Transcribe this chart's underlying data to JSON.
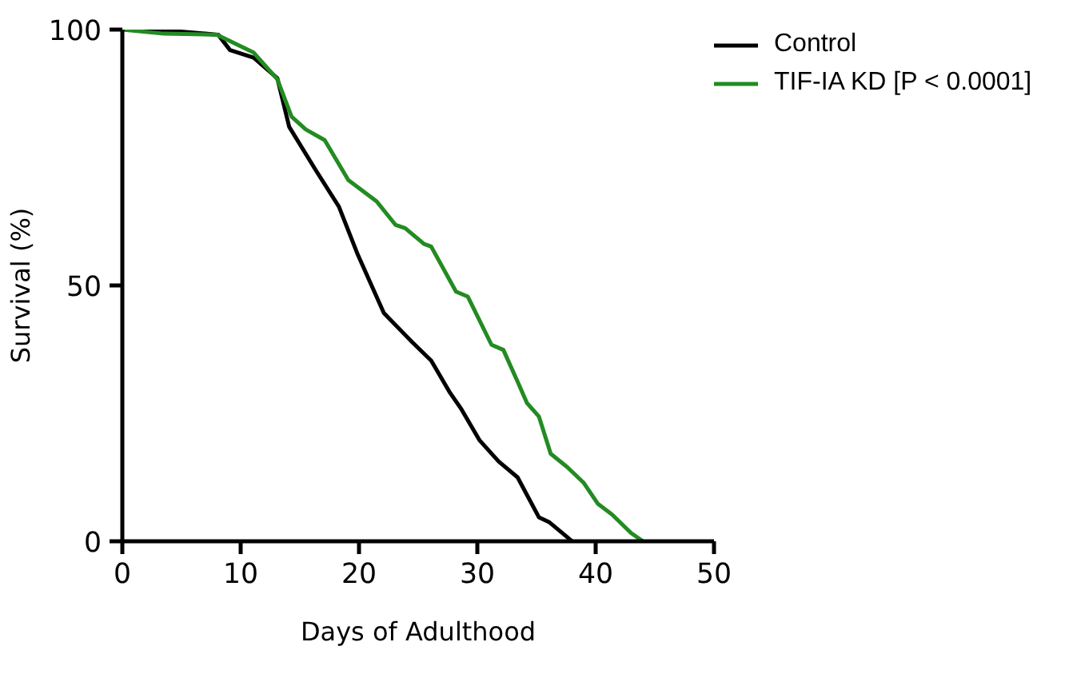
{
  "chart_data": {
    "type": "line",
    "xlabel": "Days of Adulthood",
    "ylabel": "Survival (%)",
    "xlim": [
      0,
      50
    ],
    "ylim": [
      0,
      100
    ],
    "xticks": [
      0,
      10,
      20,
      30,
      40,
      50
    ],
    "yticks": [
      0,
      50,
      100
    ],
    "grid": false,
    "legend": "top right",
    "marker": "none",
    "line_style": "solid",
    "series": [
      {
        "name": "Control",
        "color": "#000000",
        "x": [
          0,
          4.5,
          8.1,
          9.1,
          11.1,
          13.1,
          14.1,
          16.3,
          18.3,
          19.9,
          22.1,
          24.5,
          26.1,
          27.7,
          28.6,
          30.2,
          31.8,
          33.4,
          35.2,
          36.1,
          37.4,
          38
        ],
        "values": [
          100,
          99.7,
          99,
          96,
          94.5,
          90.5,
          81,
          72.7,
          65.4,
          56,
          44.6,
          38.9,
          35.3,
          29,
          26,
          19.7,
          15.6,
          12.5,
          4.7,
          3.7,
          1.2,
          0
        ]
      },
      {
        "name": "TIF-IA KD [P < 0.0001]",
        "color": "#238b22",
        "x": [
          0,
          3.5,
          8,
          11.1,
          13.1,
          14.3,
          15.5,
          17.1,
          19.1,
          21.5,
          23.1,
          23.9,
          25.5,
          26.1,
          28.2,
          29.2,
          31.2,
          32.2,
          33.4,
          34.2,
          35.2,
          36.2,
          37.6,
          39,
          40.2,
          41.4,
          43,
          44
        ],
        "values": [
          100,
          99.2,
          99,
          95.5,
          90.3,
          83,
          80.5,
          78.4,
          70.6,
          66.4,
          61.8,
          61.2,
          58.1,
          57.6,
          48.8,
          47.8,
          38.4,
          37.4,
          31.2,
          27,
          24.4,
          17.1,
          14.5,
          11.4,
          7.3,
          5.2,
          1.6,
          0
        ]
      }
    ]
  }
}
